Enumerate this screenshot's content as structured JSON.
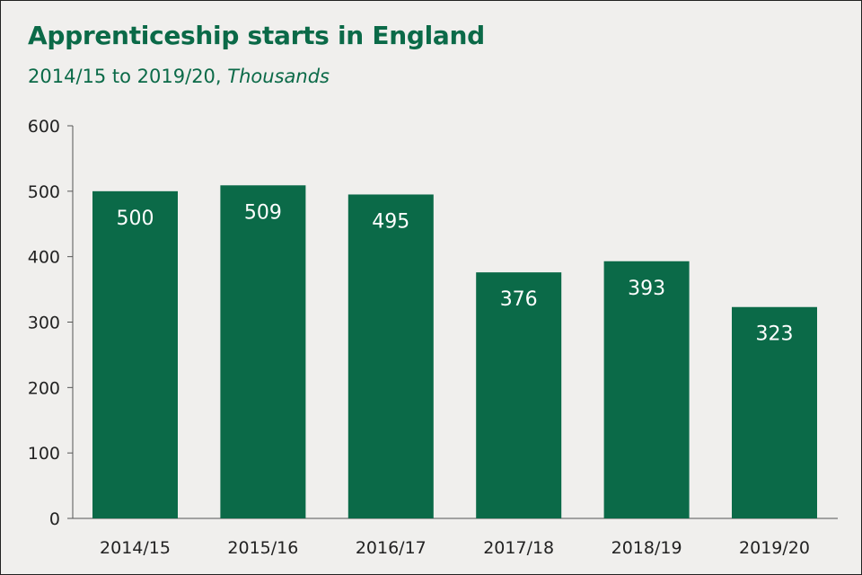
{
  "chart_data": {
    "type": "bar",
    "title": "Apprenticeship starts in England",
    "subtitle_period": "2014/15 to 2019/20,",
    "subtitle_unit": "Thousands",
    "categories": [
      "2014/15",
      "2015/16",
      "2016/17",
      "2017/18",
      "2018/19",
      "2019/20"
    ],
    "values": [
      500,
      509,
      495,
      376,
      393,
      323
    ],
    "data_labels": [
      "500",
      "509",
      "495",
      "376",
      "393",
      "323"
    ],
    "ylim": [
      0,
      600
    ],
    "yticks": [
      0,
      100,
      200,
      300,
      400,
      500,
      600
    ],
    "xlabel": "",
    "ylabel": "",
    "grid": false,
    "legend": "none",
    "colors": {
      "bar": "#0b6a48",
      "label": "#ffffff",
      "axis": "#555555",
      "title": "#0b6a48",
      "background": "#f0efed"
    }
  }
}
